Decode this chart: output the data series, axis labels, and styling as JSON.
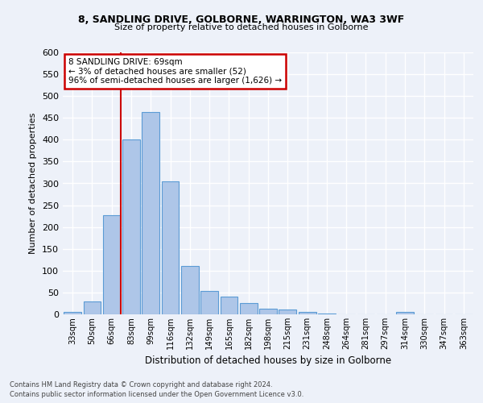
{
  "title_line1": "8, SANDLING DRIVE, GOLBORNE, WARRINGTON, WA3 3WF",
  "title_line2": "Size of property relative to detached houses in Golborne",
  "xlabel": "Distribution of detached houses by size in Golborne",
  "ylabel": "Number of detached properties",
  "bar_labels": [
    "33sqm",
    "50sqm",
    "66sqm",
    "83sqm",
    "99sqm",
    "116sqm",
    "132sqm",
    "149sqm",
    "165sqm",
    "182sqm",
    "198sqm",
    "215sqm",
    "231sqm",
    "248sqm",
    "264sqm",
    "281sqm",
    "297sqm",
    "314sqm",
    "330sqm",
    "347sqm",
    "363sqm"
  ],
  "bar_values": [
    5,
    30,
    228,
    400,
    463,
    305,
    110,
    53,
    40,
    26,
    13,
    11,
    5,
    1,
    0,
    0,
    0,
    5,
    0,
    0,
    0
  ],
  "bar_color": "#aec6e8",
  "bar_edge_color": "#5b9bd5",
  "annotation_text": "8 SANDLING DRIVE: 69sqm\n← 3% of detached houses are smaller (52)\n96% of semi-detached houses are larger (1,626) →",
  "annotation_box_color": "#ffffff",
  "annotation_box_edge_color": "#cc0000",
  "vline_color": "#cc0000",
  "ylim": [
    0,
    600
  ],
  "yticks": [
    0,
    50,
    100,
    150,
    200,
    250,
    300,
    350,
    400,
    450,
    500,
    550,
    600
  ],
  "footnote1": "Contains HM Land Registry data © Crown copyright and database right 2024.",
  "footnote2": "Contains public sector information licensed under the Open Government Licence v3.0.",
  "bg_color": "#edf1f9",
  "grid_color": "#ffffff"
}
